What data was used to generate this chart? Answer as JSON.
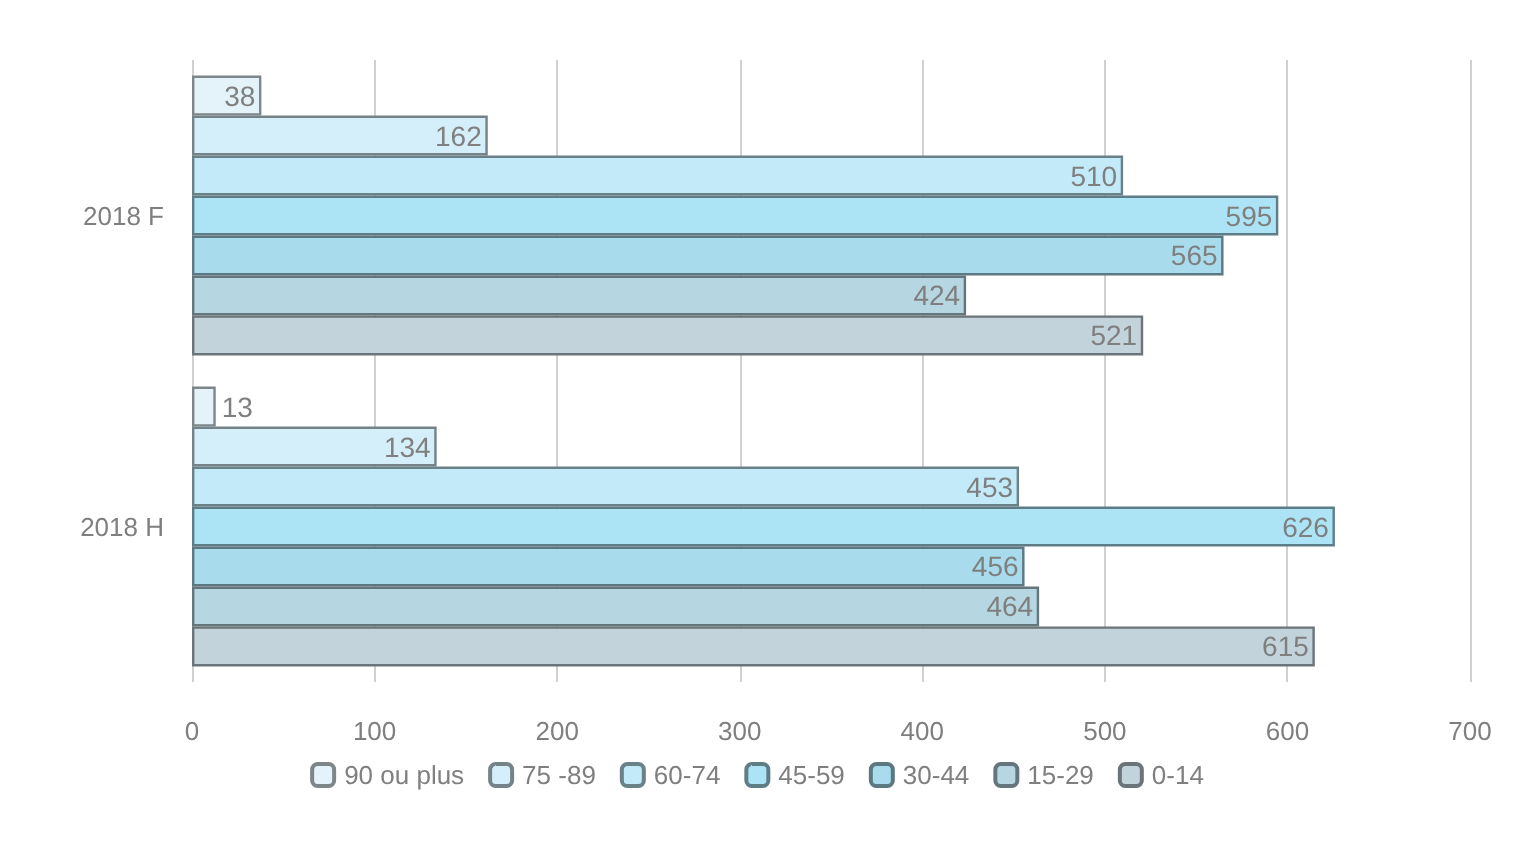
{
  "chart_data": {
    "type": "bar",
    "orientation": "horizontal",
    "categories": [
      "2018 F",
      "2018 H"
    ],
    "series": [
      {
        "name": "90 ou plus",
        "color": "#e4f3f9",
        "values": [
          38,
          13
        ]
      },
      {
        "name": "75 -89",
        "color": "#d4eff9",
        "values": [
          162,
          134
        ]
      },
      {
        "name": "60-74",
        "color": "#c2eaf8",
        "values": [
          510,
          453
        ]
      },
      {
        "name": "45-59",
        "color": "#ade4f5",
        "values": [
          595,
          626
        ]
      },
      {
        "name": "30-44",
        "color": "#a8dbec",
        "values": [
          565,
          456
        ]
      },
      {
        "name": "15-29",
        "color": "#b6d6e1",
        "values": [
          424,
          464
        ]
      },
      {
        "name": "0-14",
        "color": "#c3d3db",
        "values": [
          521,
          615
        ]
      }
    ],
    "xlim": [
      0,
      700
    ],
    "xticks": [
      0,
      100,
      200,
      300,
      400,
      500,
      600,
      700
    ],
    "grid": "x",
    "legend": "bottom",
    "data_labels": true
  }
}
